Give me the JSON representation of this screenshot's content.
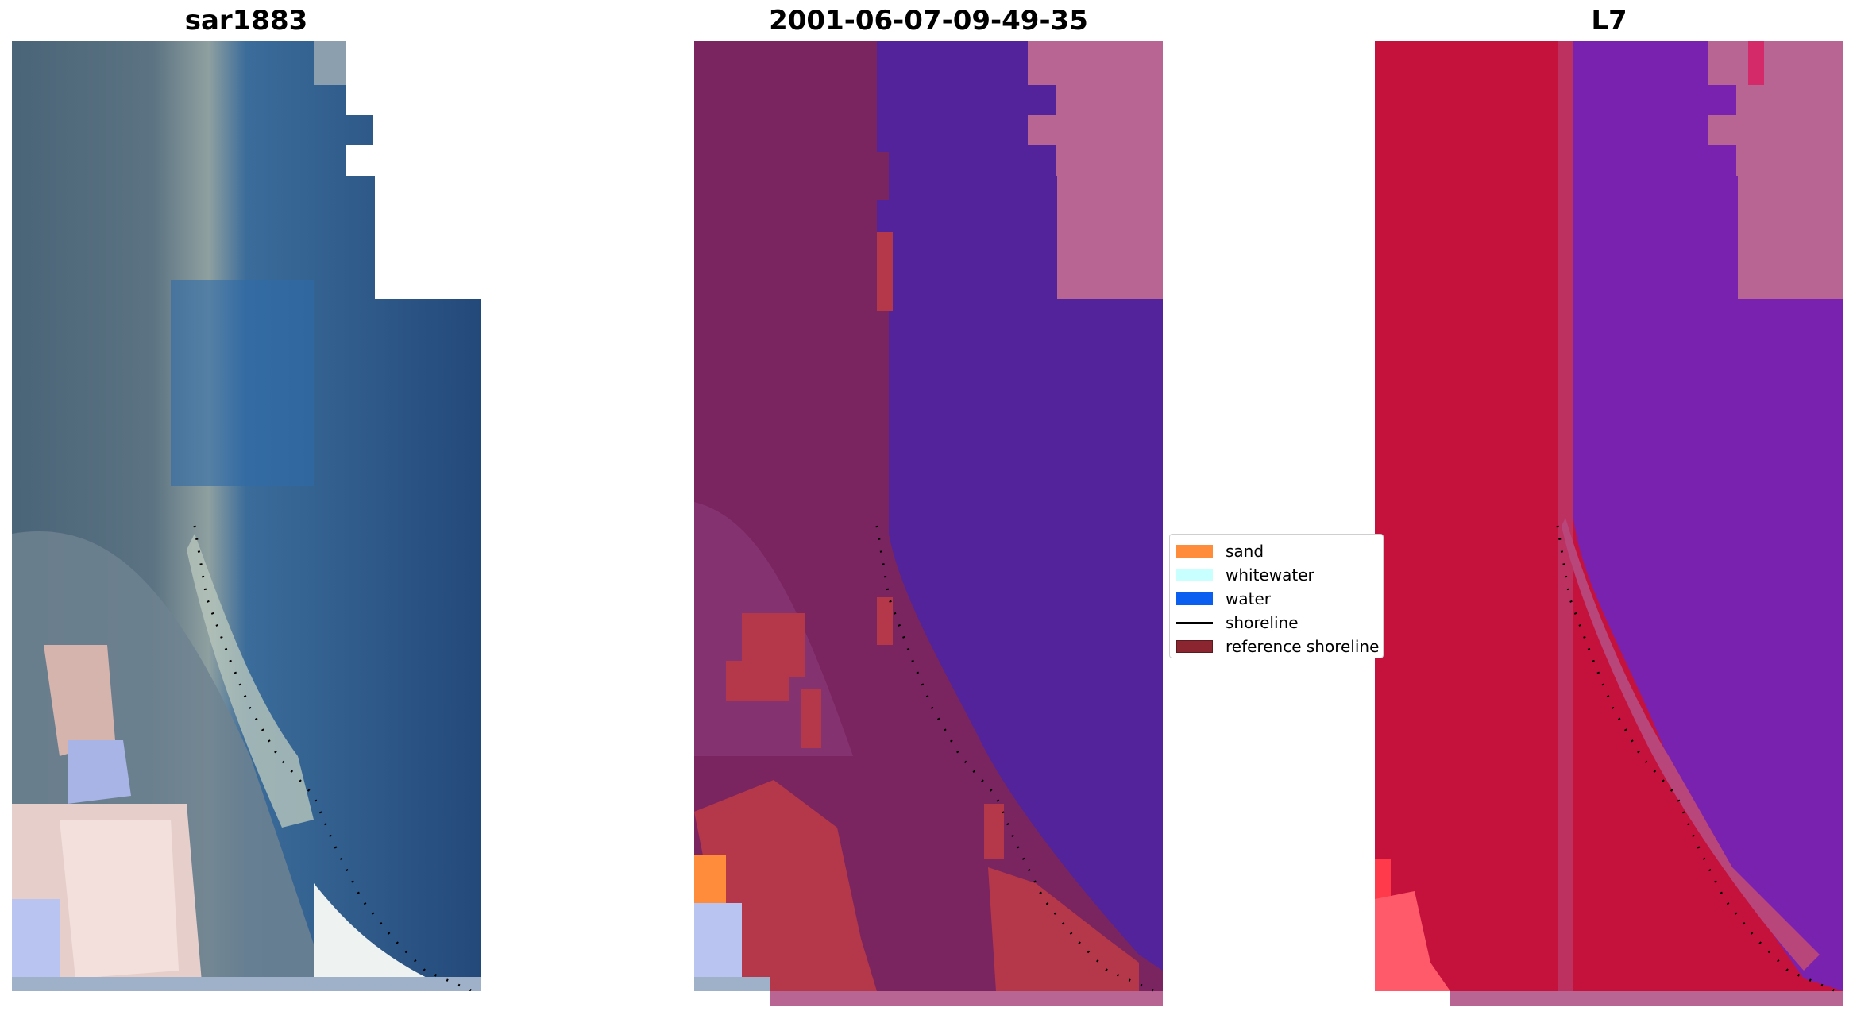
{
  "panels": [
    {
      "title": "sar1883"
    },
    {
      "title": "2001-06-07-09-49-35"
    },
    {
      "title": "L7"
    }
  ],
  "legend": {
    "placement": "center",
    "items": [
      {
        "label": "sand",
        "color": "#ff8c3a",
        "kind": "patch"
      },
      {
        "label": "whitewater",
        "color": "#c8ffff",
        "kind": "patch"
      },
      {
        "label": "water",
        "color": "#0a5ef0",
        "kind": "patch"
      },
      {
        "label": "shoreline",
        "color": "#000000",
        "kind": "line"
      },
      {
        "label": "reference shoreline",
        "color": "#8b2530",
        "kind": "patch"
      }
    ]
  },
  "colors": {
    "rgb_land": "#4f6a80",
    "rgb_water": "#25507f",
    "rgb_sand": "#9aa6a4",
    "rgb_cloud": "#f0dcda",
    "class_land": "#7a2460",
    "class_water": "#52239a",
    "class_sand_patch": "#b5384a",
    "class_nodata": "#b86593",
    "ir_land": "#c5123d",
    "ir_water": "#7a22b0",
    "ir_nodata": "#b86593"
  }
}
